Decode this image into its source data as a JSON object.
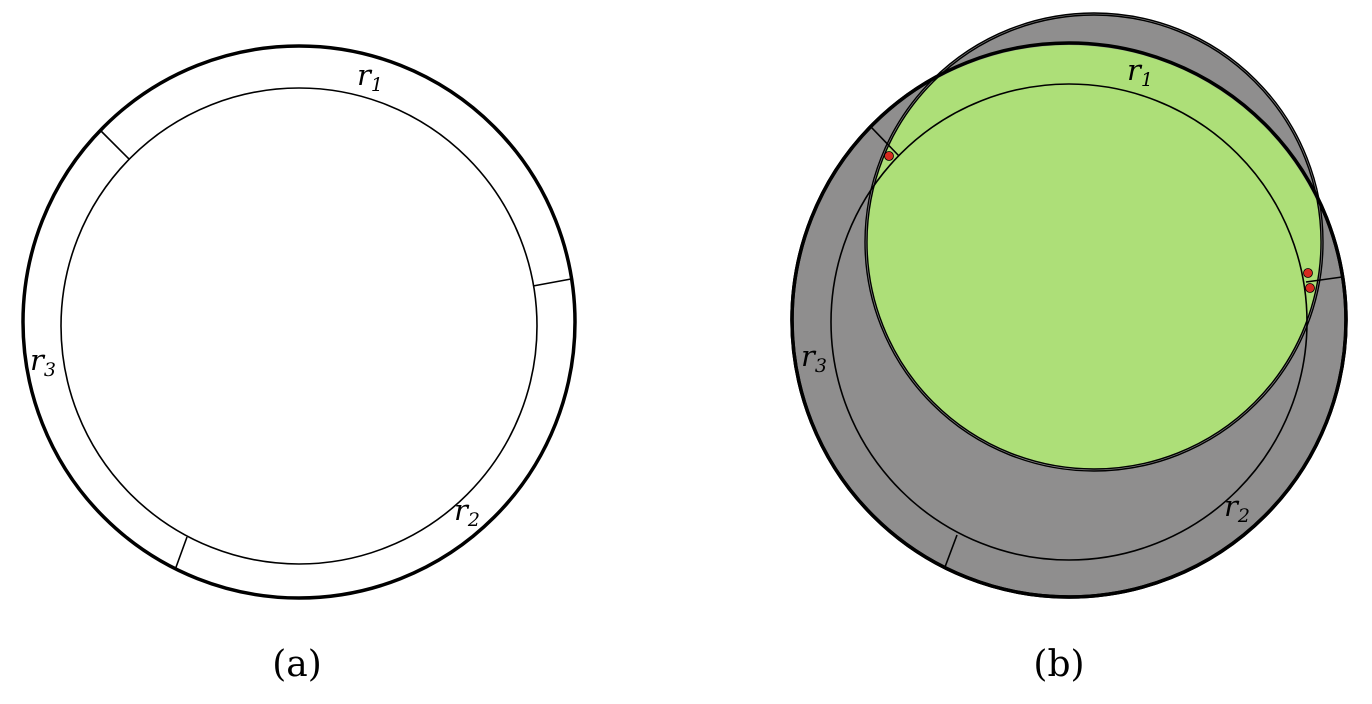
{
  "panel_a": {
    "caption": "(a)",
    "labels": {
      "r1": {
        "letter": "r",
        "index": "1"
      },
      "r2": {
        "letter": "r",
        "index": "2"
      },
      "r3": {
        "letter": "r",
        "index": "3"
      }
    }
  },
  "panel_b": {
    "caption": "(b)",
    "labels": {
      "r1": {
        "letter": "r",
        "index": "1"
      },
      "r2": {
        "letter": "r",
        "index": "2"
      },
      "r3": {
        "letter": "r",
        "index": "3"
      }
    }
  },
  "colors": {
    "ring_stroke": "#000000",
    "gray_fill": "#8f8e8e",
    "green_fill": "#addf78",
    "point_fill": "#d62a1f",
    "background": "#ffffff"
  }
}
